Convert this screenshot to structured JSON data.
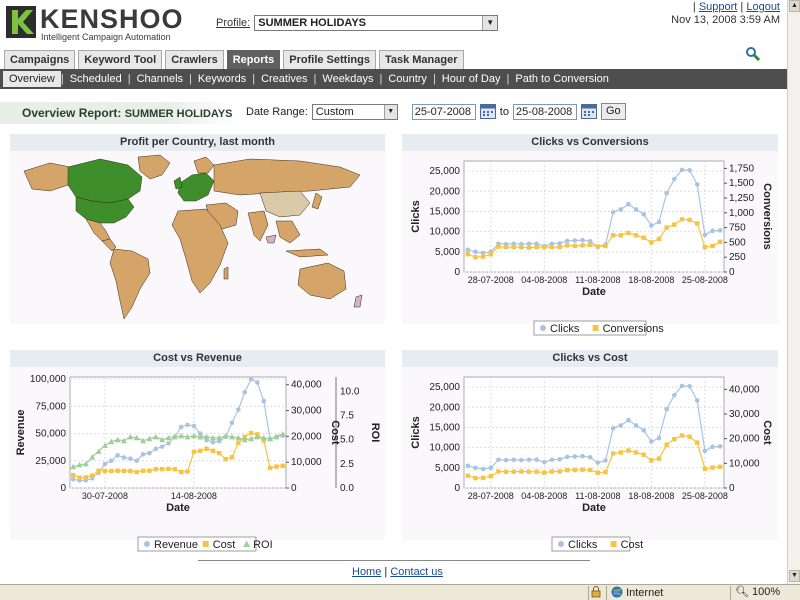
{
  "app": {
    "logo_text": "KENSHOO",
    "logo_sub": "Intelligent Campaign Automation",
    "profile_label": "Profile:",
    "profile_value": "SUMMER HOLIDAYS",
    "support_link": "Support",
    "logout_link": "Logout",
    "link_separator": "|",
    "datetime": "Nov 13, 2008 3:59 AM"
  },
  "tabs": [
    {
      "label": "Campaigns"
    },
    {
      "label": "Keyword Tool"
    },
    {
      "label": "Crawlers"
    },
    {
      "label": "Reports"
    },
    {
      "label": "Profile Settings"
    },
    {
      "label": "Task Manager"
    }
  ],
  "active_tab": "Reports",
  "subnav": [
    {
      "label": "Overview"
    },
    {
      "label": "Scheduled"
    },
    {
      "label": "Channels"
    },
    {
      "label": "Keywords"
    },
    {
      "label": "Creatives"
    },
    {
      "label": "Weekdays"
    },
    {
      "label": "Country"
    },
    {
      "label": "Hour of Day"
    },
    {
      "label": "Path to Conversion"
    }
  ],
  "subnav_separator": "|",
  "report": {
    "title_lead": "Overview Report:",
    "title_name": "SUMMER HOLIDAYS",
    "date_range_label": "Date Range:",
    "date_range_value": "Custom",
    "from_date": "25-07-2008",
    "to_label": "to",
    "to_date": "25-08-2008",
    "go_label": "Go"
  },
  "footer": {
    "home": "Home",
    "contact": "Contact us",
    "separator": "|"
  },
  "statusbar": {
    "zone": "Internet",
    "zoom": "100%"
  },
  "colors": {
    "blue_series": "#a9c4e2",
    "orange_series": "#f7c343",
    "green_series": "#9fce9a",
    "map_ocean": "#faf8fa",
    "map_land": "#d4a468",
    "map_green": "#3e8f2c"
  },
  "panels": {
    "map": {
      "title": "Profit per Country, last month"
    },
    "clicks_conv": {
      "title": "Clicks vs Conversions"
    },
    "cost_rev": {
      "title": "Cost vs Revenue"
    },
    "clicks_cost": {
      "title": "Clicks vs Cost"
    }
  },
  "chart_data": [
    {
      "id": "clicks_conv",
      "type": "line",
      "title": "Clicks vs Conversions",
      "xlabel": "Date",
      "ylabel": "Clicks",
      "y2label": "Conversions",
      "ylim": [
        0,
        27500
      ],
      "y2lim": [
        0,
        1875
      ],
      "yticks": [
        "0",
        "5,000",
        "10,000",
        "15,000",
        "20,000",
        "25,000"
      ],
      "y2ticks": [
        "0",
        "250",
        "500",
        "750",
        "1,000",
        "1,250",
        "1,500",
        "1,750"
      ],
      "xticks": [
        "28-07-2008",
        "04-08-2008",
        "11-08-2008",
        "18-08-2008",
        "25-08-2008"
      ],
      "series": [
        {
          "name": "Clicks",
          "axis": "left",
          "values": [
            5500,
            5000,
            4700,
            5000,
            7000,
            6900,
            7000,
            6900,
            7000,
            7000,
            6400,
            7000,
            7100,
            7700,
            7800,
            7900,
            7600,
            6300,
            6800,
            14800,
            15500,
            16800,
            15500,
            14300,
            11500,
            12400,
            19500,
            23000,
            25300,
            25200,
            21700,
            9200,
            10200,
            10300
          ]
        },
        {
          "name": "Conversions",
          "axis": "right",
          "values": [
            300,
            250,
            260,
            300,
            430,
            420,
            420,
            420,
            410,
            420,
            420,
            420,
            420,
            450,
            440,
            450,
            460,
            430,
            440,
            620,
            620,
            660,
            620,
            580,
            500,
            560,
            750,
            800,
            890,
            880,
            820,
            420,
            440,
            510
          ]
        }
      ]
    },
    {
      "id": "cost_rev",
      "type": "line",
      "title": "Cost vs Revenue",
      "xlabel": "Date",
      "ylabel": "Revenue",
      "y2label": "Cost",
      "y3label": "ROI",
      "ylim": [
        0,
        102000
      ],
      "y2lim": [
        0,
        43000
      ],
      "y3lim": [
        0,
        11.5
      ],
      "yticks": [
        "0",
        "25,000",
        "50,000",
        "75,000",
        "100,000"
      ],
      "y2ticks": [
        "0",
        "10,000",
        "20,000",
        "30,000",
        "40,000"
      ],
      "y3ticks": [
        "0.0",
        "2.5",
        "5.0",
        "7.5",
        "10.0"
      ],
      "xticks": [
        "30-07-2008",
        "14-08-2008"
      ],
      "series": [
        {
          "name": "Revenue",
          "axis": "left",
          "values": [
            8000,
            7000,
            7000,
            9000,
            14000,
            22000,
            25000,
            30000,
            28000,
            27000,
            25000,
            31000,
            32000,
            36000,
            38000,
            41000,
            47000,
            56000,
            58000,
            57000,
            50000,
            44000,
            42000,
            43000,
            47000,
            60000,
            72000,
            88000,
            100000,
            97000,
            80000,
            45000,
            47000,
            48000
          ]
        },
        {
          "name": "Cost",
          "axis": "right",
          "values": [
            5000,
            4000,
            4100,
            4800,
            6700,
            6600,
            6600,
            6700,
            6600,
            6600,
            6200,
            6700,
            6700,
            7300,
            7300,
            7400,
            7300,
            6200,
            6400,
            14000,
            14400,
            15200,
            14400,
            13500,
            11200,
            11900,
            17500,
            19800,
            21300,
            20800,
            18400,
            7800,
            8300,
            8600
          ]
        },
        {
          "name": "ROI",
          "axis": "right2",
          "values": [
            2.2,
            2.4,
            2.5,
            3.2,
            3.8,
            4.4,
            4.8,
            5.0,
            4.9,
            5.3,
            5.2,
            4.9,
            5.1,
            5.3,
            5.0,
            5.2,
            5.3,
            5.4,
            5.3,
            5.4,
            5.3,
            5.3,
            5.2,
            5.2,
            5.4,
            5.3,
            5.2,
            5.0,
            5.1,
            5.3,
            5.2,
            5.1,
            5.3,
            5.6
          ]
        }
      ]
    },
    {
      "id": "clicks_cost",
      "type": "line",
      "title": "Clicks vs Cost",
      "xlabel": "Date",
      "ylabel": "Clicks",
      "y2label": "Cost",
      "ylim": [
        0,
        27500
      ],
      "y2lim": [
        0,
        45000
      ],
      "yticks": [
        "0",
        "5,000",
        "10,000",
        "15,000",
        "20,000",
        "25,000"
      ],
      "y2ticks": [
        "0",
        "10,000",
        "20,000",
        "30,000",
        "40,000"
      ],
      "xticks": [
        "28-07-2008",
        "04-08-2008",
        "11-08-2008",
        "18-08-2008",
        "25-08-2008"
      ],
      "series": [
        {
          "name": "Clicks",
          "axis": "left",
          "values": [
            5500,
            5000,
            4700,
            5000,
            7000,
            6900,
            7000,
            6900,
            7000,
            7000,
            6400,
            7000,
            7100,
            7700,
            7800,
            7900,
            7600,
            6300,
            6800,
            14800,
            15500,
            16800,
            15500,
            14300,
            11500,
            12400,
            19500,
            23000,
            25300,
            25200,
            21700,
            9200,
            10200,
            10300
          ]
        },
        {
          "name": "Cost",
          "axis": "right",
          "values": [
            5000,
            4000,
            4100,
            4800,
            6700,
            6600,
            6600,
            6700,
            6600,
            6600,
            6200,
            6700,
            6700,
            7300,
            7300,
            7400,
            7300,
            6200,
            6400,
            14000,
            14400,
            15200,
            14400,
            13500,
            11200,
            11900,
            17500,
            19800,
            21300,
            20800,
            18400,
            7800,
            8300,
            8600
          ]
        }
      ]
    }
  ]
}
